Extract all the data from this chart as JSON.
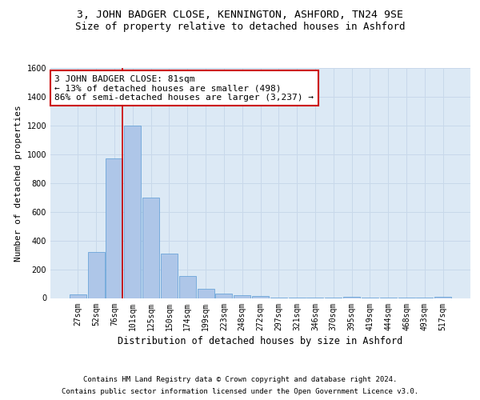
{
  "title": "3, JOHN BADGER CLOSE, KENNINGTON, ASHFORD, TN24 9SE",
  "subtitle": "Size of property relative to detached houses in Ashford",
  "xlabel": "Distribution of detached houses by size in Ashford",
  "ylabel": "Number of detached properties",
  "categories": [
    "27sqm",
    "52sqm",
    "76sqm",
    "101sqm",
    "125sqm",
    "150sqm",
    "174sqm",
    "199sqm",
    "223sqm",
    "248sqm",
    "272sqm",
    "297sqm",
    "321sqm",
    "346sqm",
    "370sqm",
    "395sqm",
    "419sqm",
    "444sqm",
    "468sqm",
    "493sqm",
    "517sqm"
  ],
  "values": [
    25,
    320,
    970,
    1200,
    700,
    310,
    155,
    65,
    30,
    20,
    15,
    5,
    5,
    3,
    2,
    10,
    2,
    1,
    1,
    1,
    10
  ],
  "bar_color": "#aec6e8",
  "bar_edge_color": "#5b9bd5",
  "annotation_text_line1": "3 JOHN BADGER CLOSE: 81sqm",
  "annotation_text_line2": "← 13% of detached houses are smaller (498)",
  "annotation_text_line3": "86% of semi-detached houses are larger (3,237) →",
  "annotation_box_color": "#ffffff",
  "annotation_box_edge": "#cc0000",
  "vline_color": "#cc0000",
  "ylim": [
    0,
    1600
  ],
  "yticks": [
    0,
    200,
    400,
    600,
    800,
    1000,
    1200,
    1400,
    1600
  ],
  "grid_color": "#c8d8ea",
  "bg_color": "#dce9f5",
  "footer_line1": "Contains HM Land Registry data © Crown copyright and database right 2024.",
  "footer_line2": "Contains public sector information licensed under the Open Government Licence v3.0.",
  "title_fontsize": 9.5,
  "subtitle_fontsize": 9,
  "annot_fontsize": 8,
  "tick_fontsize": 7,
  "ylabel_fontsize": 8,
  "xlabel_fontsize": 8.5,
  "footer_fontsize": 6.5
}
